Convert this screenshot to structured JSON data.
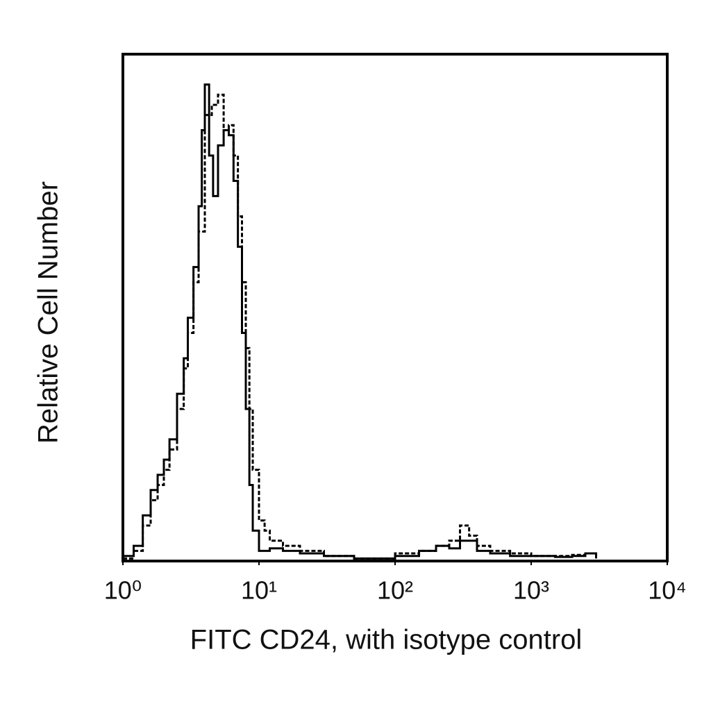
{
  "chart_data": {
    "type": "line",
    "xlabel": "FITC CD24, with isotype control",
    "ylabel": "Relative Cell Number",
    "xscale": "log",
    "xlim": [
      1,
      10000
    ],
    "xticks": [
      {
        "value": 1,
        "label": "10⁰"
      },
      {
        "value": 10,
        "label": "10¹"
      },
      {
        "value": 100,
        "label": "10²"
      },
      {
        "value": 1000,
        "label": "10³"
      },
      {
        "value": 10000,
        "label": "10⁴"
      }
    ],
    "ylim": [
      0,
      100
    ],
    "series": [
      {
        "color": "#000000",
        "dash": false,
        "x": [
          1,
          1.2,
          1.4,
          1.6,
          1.8,
          2,
          2.2,
          2.5,
          2.8,
          3,
          3.3,
          3.6,
          3.8,
          4,
          4.3,
          4.6,
          5,
          5.5,
          6,
          6.5,
          7,
          7.5,
          8,
          8.5,
          9,
          10,
          12,
          15,
          20,
          30,
          50,
          100,
          150,
          200,
          250,
          300,
          400,
          500,
          700,
          1000,
          1500,
          2000,
          2500,
          3000
        ],
        "values": [
          1,
          3,
          9,
          14,
          17,
          20,
          24,
          33,
          40,
          48,
          58,
          70,
          85,
          94,
          80,
          72,
          82,
          85,
          84,
          75,
          62,
          45,
          30,
          15,
          6,
          2,
          2.5,
          2,
          1.5,
          1,
          0.5,
          1,
          2,
          3,
          2.5,
          4,
          2,
          1.5,
          1,
          1,
          0.8,
          1,
          1.5,
          0.5
        ]
      },
      {
        "color": "#000000",
        "dash": true,
        "x": [
          1,
          1.2,
          1.4,
          1.6,
          1.8,
          2,
          2.2,
          2.5,
          2.8,
          3,
          3.3,
          3.6,
          4,
          4.5,
          5,
          5.5,
          6,
          6.5,
          7,
          7.5,
          8,
          8.5,
          9,
          10,
          11,
          12,
          15,
          20,
          30,
          50,
          100,
          150,
          200,
          250,
          300,
          350,
          400,
          500,
          700,
          1000,
          1500,
          2000,
          2500,
          3000
        ],
        "values": [
          0.5,
          2,
          7,
          12,
          15,
          18,
          22,
          30,
          38,
          45,
          55,
          65,
          88,
          90,
          92,
          85,
          86,
          80,
          68,
          55,
          42,
          30,
          18,
          8,
          6,
          4,
          3,
          2,
          1,
          0.5,
          1.5,
          2,
          3,
          4,
          7,
          5,
          3,
          2,
          1.5,
          1,
          1,
          1.2,
          1.5,
          1
        ]
      }
    ]
  }
}
